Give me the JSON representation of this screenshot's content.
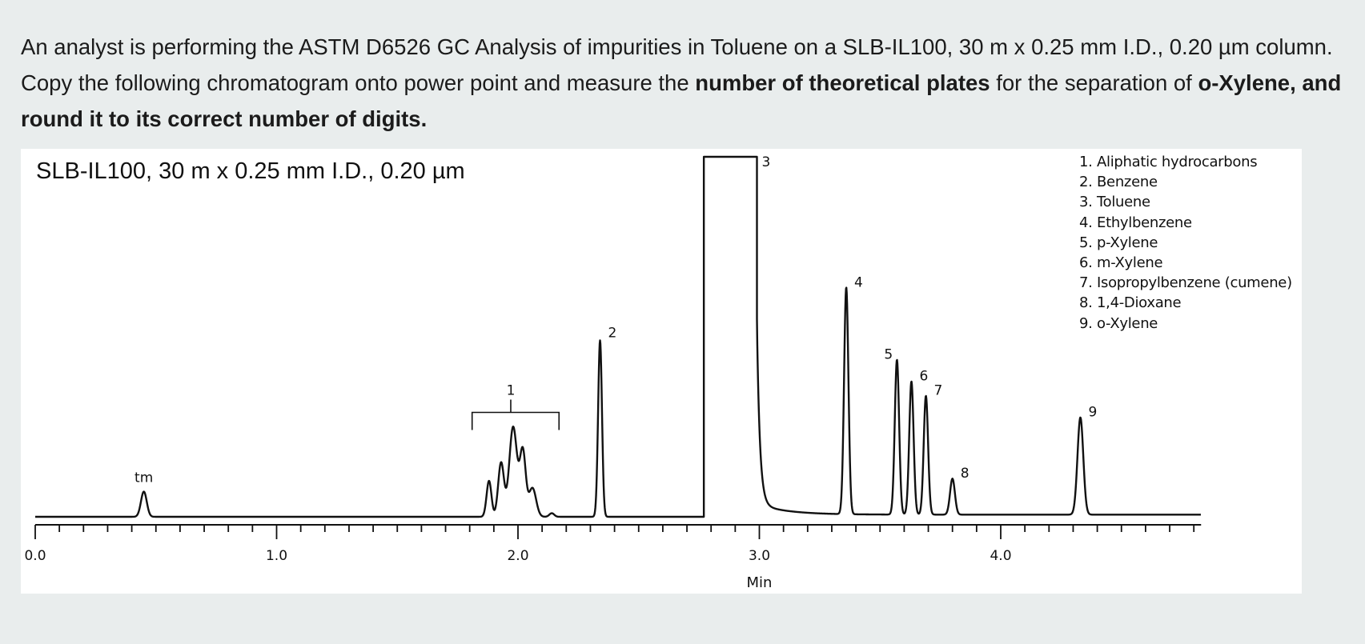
{
  "question": {
    "part1": "An analyst is performing the ASTM D6526 GC Analysis of impurities in Toluene on a SLB-IL100, 30 m x 0.25 mm I.D., 0.20 µm column.  Copy the following chromatogram onto power point and measure the ",
    "bold1": "number of theoretical plates",
    "part2": " for the separation of  ",
    "bold2": "o-Xylene, and round it to its correct number of digits."
  },
  "chart_data": {
    "type": "line",
    "title": "SLB-IL100, 30 m x 0.25 mm I.D., 0.20 µm",
    "xlabel": "Min",
    "ylabel": "",
    "xlim": [
      0.0,
      4.83
    ],
    "x_tick_labels": [
      "0.0",
      "1.0",
      "2.0",
      "3.0",
      "4.0"
    ],
    "x_tick_values": [
      0.0,
      1.0,
      2.0,
      3.0,
      4.0
    ],
    "minor_tick_step": 0.1,
    "grid": false,
    "legend_position": "top-right",
    "legend": [
      "1. Aliphatic hydrocarbons",
      "2. Benzene",
      "3. Toluene",
      "4. Ethylbenzene",
      "5. p-Xylene",
      "6. m-Xylene",
      "7. Isopropylbenzene (cumene)",
      "8. 1,4-Dioxane",
      "9. o-Xylene"
    ],
    "peaks": [
      {
        "label": "tm",
        "rt": 0.45,
        "height": 0.07,
        "width": 0.012
      },
      {
        "label": "",
        "rt": 1.88,
        "height": 0.1,
        "width": 0.01
      },
      {
        "label": "",
        "rt": 1.93,
        "height": 0.15,
        "width": 0.012
      },
      {
        "label": "1",
        "rt": 1.98,
        "height": 0.25,
        "width": 0.016
      },
      {
        "label": "",
        "rt": 2.02,
        "height": 0.18,
        "width": 0.012
      },
      {
        "label": "",
        "rt": 2.06,
        "height": 0.08,
        "width": 0.015
      },
      {
        "label": "",
        "rt": 2.14,
        "height": 0.01,
        "width": 0.01
      },
      {
        "label": "2",
        "rt": 2.34,
        "height": 0.49,
        "width": 0.008
      },
      {
        "label": "3",
        "rt": 2.88,
        "height": 1.0,
        "width": 0.0,
        "type": "truncated",
        "start": 2.77,
        "end": 2.99
      },
      {
        "label": "4",
        "rt": 3.36,
        "height": 0.63,
        "width": 0.009
      },
      {
        "label": "5",
        "rt": 3.57,
        "height": 0.43,
        "width": 0.009
      },
      {
        "label": "6",
        "rt": 3.63,
        "height": 0.37,
        "width": 0.009
      },
      {
        "label": "7",
        "rt": 3.69,
        "height": 0.33,
        "width": 0.009
      },
      {
        "label": "8",
        "rt": 3.8,
        "height": 0.1,
        "width": 0.01
      },
      {
        "label": "9",
        "rt": 4.33,
        "height": 0.27,
        "width": 0.012
      }
    ],
    "bracket_label": "1",
    "bracket_range": [
      1.81,
      2.17
    ]
  },
  "colors": {
    "page_bg": "#e9eded",
    "plot_bg": "#ffffff",
    "trace": "#111111"
  }
}
